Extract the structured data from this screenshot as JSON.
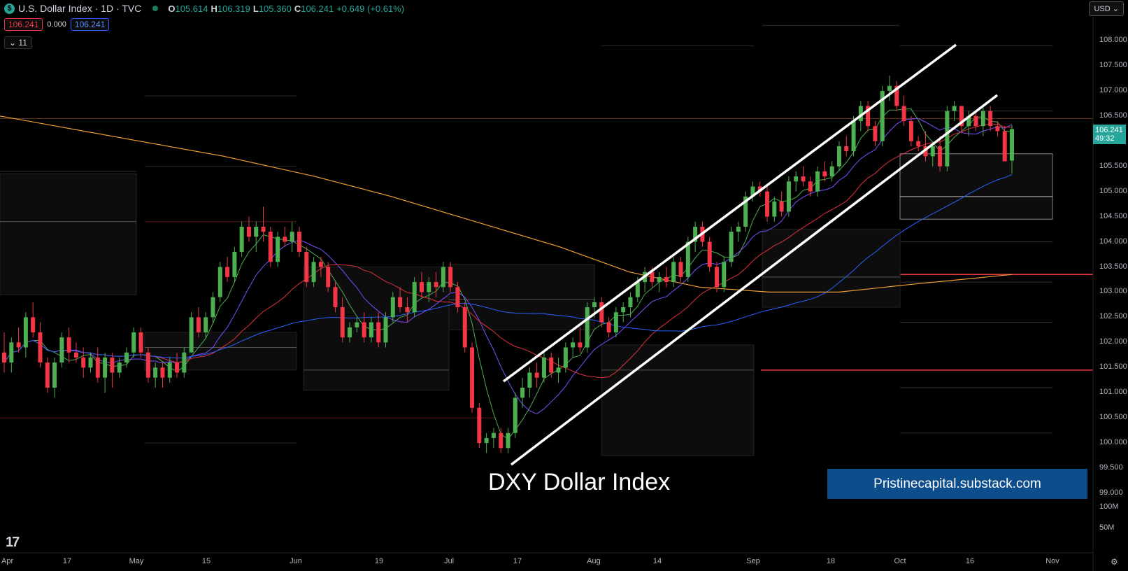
{
  "header": {
    "logo_glyph": "$",
    "symbol": "U.S. Dollar Index · 1D · TVC",
    "ohlc": [
      {
        "k": "O",
        "v": "105.614"
      },
      {
        "k": "H",
        "v": "106.319"
      },
      {
        "k": "L",
        "v": "105.360"
      },
      {
        "k": "C",
        "v": "106.241"
      }
    ],
    "change": "+0.649 (+0.61%)",
    "bid": "106.241",
    "spread": "0.000",
    "ask": "106.241",
    "indicator_toggle": "11",
    "currency": "USD"
  },
  "price_tag": {
    "price": "106.241",
    "countdown": "49:32"
  },
  "title_text": "DXY Dollar Index",
  "banner_text": "Pristinecapital.substack.com",
  "colors": {
    "up": "#4caf50",
    "down": "#f23645",
    "ma200": "#f0a030",
    "ma50": "#2962ff",
    "ma20": "#e0303a",
    "ma10": "#7c4dff",
    "ma5": "#4caf50",
    "channel": "#ffffff",
    "banner": "#0d4d8c",
    "tag": "#26a69a"
  },
  "chart_data": {
    "type": "candlestick",
    "x_labels": [
      "Apr",
      "17",
      "May",
      "15",
      "Jun",
      "19",
      "Jul",
      "17",
      "Aug",
      "14",
      "Sep",
      "18",
      "Oct",
      "16",
      "Nov"
    ],
    "y_ticks": [
      "108.000",
      "107.500",
      "107.000",
      "106.500",
      "105.500",
      "105.000",
      "104.500",
      "104.000",
      "103.500",
      "103.000",
      "102.500",
      "102.000",
      "101.500",
      "101.000",
      "100.500",
      "100.000",
      "99.500",
      "99.000"
    ],
    "y_range": [
      98.5,
      108.5
    ],
    "volume_ticks": [
      "100M",
      "50M"
    ],
    "candles": [
      [
        101.8,
        102.2,
        101.4,
        101.6
      ],
      [
        101.6,
        102.1,
        101.4,
        102.0
      ],
      [
        102.0,
        102.3,
        101.8,
        101.9
      ],
      [
        101.9,
        102.6,
        101.7,
        102.5
      ],
      [
        102.5,
        102.8,
        102.1,
        102.2
      ],
      [
        102.2,
        102.4,
        101.5,
        101.6
      ],
      [
        101.6,
        101.7,
        101.0,
        101.1
      ],
      [
        101.1,
        101.7,
        100.9,
        101.6
      ],
      [
        101.6,
        102.2,
        101.5,
        102.1
      ],
      [
        102.1,
        102.3,
        101.6,
        101.8
      ],
      [
        101.8,
        102.0,
        101.6,
        101.7
      ],
      [
        101.7,
        101.9,
        101.3,
        101.5
      ],
      [
        101.5,
        101.8,
        101.4,
        101.7
      ],
      [
        101.7,
        101.9,
        101.2,
        101.3
      ],
      [
        101.3,
        101.8,
        101.0,
        101.7
      ],
      [
        101.7,
        101.8,
        101.1,
        101.4
      ],
      [
        101.4,
        101.7,
        101.3,
        101.6
      ],
      [
        101.6,
        101.9,
        101.5,
        101.8
      ],
      [
        101.8,
        102.3,
        101.7,
        102.2
      ],
      [
        102.2,
        102.3,
        101.7,
        101.8
      ],
      [
        101.8,
        101.9,
        101.2,
        101.3
      ],
      [
        101.3,
        101.6,
        101.1,
        101.5
      ],
      [
        101.5,
        101.6,
        101.1,
        101.3
      ],
      [
        101.3,
        101.7,
        101.2,
        101.6
      ],
      [
        101.6,
        101.8,
        101.3,
        101.4
      ],
      [
        101.4,
        101.9,
        101.3,
        101.8
      ],
      [
        101.8,
        102.6,
        101.8,
        102.5
      ],
      [
        102.5,
        102.7,
        102.1,
        102.2
      ],
      [
        102.2,
        102.6,
        102.1,
        102.5
      ],
      [
        102.5,
        103.0,
        102.4,
        102.9
      ],
      [
        102.9,
        103.6,
        102.8,
        103.5
      ],
      [
        103.5,
        103.7,
        103.2,
        103.3
      ],
      [
        103.3,
        103.9,
        103.2,
        103.8
      ],
      [
        103.8,
        104.4,
        103.7,
        104.3
      ],
      [
        104.3,
        104.5,
        104.0,
        104.1
      ],
      [
        104.1,
        104.4,
        103.8,
        104.3
      ],
      [
        104.3,
        104.7,
        104.0,
        104.2
      ],
      [
        104.2,
        104.3,
        103.5,
        103.6
      ],
      [
        103.6,
        104.2,
        103.5,
        104.1
      ],
      [
        104.1,
        104.3,
        103.9,
        104.0
      ],
      [
        104.0,
        104.4,
        103.8,
        104.2
      ],
      [
        104.2,
        104.3,
        103.7,
        103.8
      ],
      [
        103.8,
        103.9,
        103.1,
        103.2
      ],
      [
        103.2,
        103.7,
        103.1,
        103.6
      ],
      [
        103.6,
        103.7,
        103.3,
        103.5
      ],
      [
        103.5,
        103.6,
        103.0,
        103.1
      ],
      [
        103.1,
        103.2,
        102.6,
        102.7
      ],
      [
        102.7,
        102.9,
        102.0,
        102.1
      ],
      [
        102.1,
        102.4,
        102.0,
        102.3
      ],
      [
        102.3,
        102.5,
        102.2,
        102.4
      ],
      [
        102.4,
        102.6,
        102.0,
        102.1
      ],
      [
        102.1,
        102.5,
        102.0,
        102.4
      ],
      [
        102.4,
        102.6,
        101.9,
        102.0
      ],
      [
        102.0,
        102.6,
        101.9,
        102.5
      ],
      [
        102.5,
        103.0,
        102.4,
        102.9
      ],
      [
        102.9,
        103.1,
        102.6,
        102.7
      ],
      [
        102.7,
        102.9,
        102.4,
        102.6
      ],
      [
        102.6,
        103.3,
        102.5,
        103.2
      ],
      [
        103.2,
        103.4,
        102.9,
        103.0
      ],
      [
        103.0,
        103.3,
        102.8,
        103.2
      ],
      [
        103.2,
        103.4,
        102.9,
        103.1
      ],
      [
        103.1,
        103.6,
        103.0,
        103.5
      ],
      [
        103.5,
        103.6,
        103.0,
        103.1
      ],
      [
        103.1,
        103.2,
        102.6,
        102.7
      ],
      [
        102.7,
        102.8,
        101.8,
        101.9
      ],
      [
        101.9,
        102.0,
        100.6,
        100.7
      ],
      [
        100.7,
        100.8,
        99.9,
        100.0
      ],
      [
        100.0,
        100.2,
        99.8,
        100.1
      ],
      [
        100.1,
        100.3,
        99.9,
        100.2
      ],
      [
        100.2,
        100.3,
        99.8,
        99.9
      ],
      [
        99.9,
        100.3,
        99.8,
        100.2
      ],
      [
        100.2,
        101.0,
        100.1,
        100.9
      ],
      [
        100.9,
        101.3,
        100.7,
        101.1
      ],
      [
        101.1,
        101.5,
        100.9,
        101.4
      ],
      [
        101.4,
        101.6,
        101.1,
        101.3
      ],
      [
        101.3,
        101.8,
        101.2,
        101.7
      ],
      [
        101.7,
        101.8,
        101.3,
        101.4
      ],
      [
        101.4,
        101.7,
        101.2,
        101.5
      ],
      [
        101.5,
        102.0,
        101.4,
        101.9
      ],
      [
        101.9,
        102.1,
        101.7,
        102.0
      ],
      [
        102.0,
        102.3,
        101.8,
        101.9
      ],
      [
        101.9,
        102.8,
        101.8,
        102.7
      ],
      [
        102.7,
        102.9,
        102.5,
        102.8
      ],
      [
        102.8,
        102.9,
        102.3,
        102.4
      ],
      [
        102.4,
        102.5,
        102.1,
        102.2
      ],
      [
        102.2,
        102.7,
        102.1,
        102.6
      ],
      [
        102.6,
        102.8,
        102.4,
        102.7
      ],
      [
        102.7,
        103.0,
        102.5,
        102.9
      ],
      [
        102.9,
        103.3,
        102.8,
        103.2
      ],
      [
        103.2,
        103.5,
        103.0,
        103.4
      ],
      [
        103.4,
        103.5,
        103.1,
        103.2
      ],
      [
        103.2,
        103.4,
        103.0,
        103.3
      ],
      [
        103.3,
        103.5,
        103.1,
        103.2
      ],
      [
        103.2,
        103.7,
        103.1,
        103.6
      ],
      [
        103.6,
        103.7,
        103.2,
        103.3
      ],
      [
        103.3,
        104.1,
        103.2,
        104.0
      ],
      [
        104.0,
        104.4,
        103.8,
        104.3
      ],
      [
        104.3,
        104.4,
        103.9,
        104.0
      ],
      [
        104.0,
        104.1,
        103.4,
        103.5
      ],
      [
        103.5,
        103.6,
        103.0,
        103.1
      ],
      [
        103.1,
        103.7,
        103.0,
        103.6
      ],
      [
        103.6,
        104.3,
        103.5,
        104.2
      ],
      [
        104.2,
        104.4,
        104.0,
        104.3
      ],
      [
        104.3,
        105.0,
        104.2,
        104.9
      ],
      [
        104.9,
        105.2,
        104.8,
        105.1
      ],
      [
        105.1,
        105.2,
        104.9,
        105.0
      ],
      [
        105.0,
        105.1,
        104.4,
        104.5
      ],
      [
        104.5,
        104.9,
        104.4,
        104.8
      ],
      [
        104.8,
        105.0,
        104.5,
        104.6
      ],
      [
        104.6,
        105.3,
        104.5,
        105.2
      ],
      [
        105.2,
        105.4,
        105.0,
        105.3
      ],
      [
        105.3,
        105.5,
        105.1,
        105.2
      ],
      [
        105.2,
        105.3,
        104.9,
        105.0
      ],
      [
        105.0,
        105.5,
        104.9,
        105.4
      ],
      [
        105.4,
        105.6,
        105.2,
        105.3
      ],
      [
        105.3,
        105.6,
        105.2,
        105.5
      ],
      [
        105.5,
        106.0,
        105.4,
        105.9
      ],
      [
        105.9,
        106.1,
        105.7,
        105.8
      ],
      [
        105.8,
        106.5,
        105.7,
        106.4
      ],
      [
        106.4,
        106.8,
        106.2,
        106.7
      ],
      [
        106.7,
        106.8,
        106.2,
        106.3
      ],
      [
        106.3,
        106.4,
        105.9,
        106.0
      ],
      [
        106.0,
        107.1,
        105.9,
        107.0
      ],
      [
        107.0,
        107.3,
        106.8,
        107.1
      ],
      [
        107.1,
        107.2,
        106.6,
        106.7
      ],
      [
        106.7,
        106.9,
        106.3,
        106.4
      ],
      [
        106.4,
        106.5,
        105.9,
        106.0
      ],
      [
        106.0,
        106.1,
        105.8,
        105.9
      ],
      [
        105.9,
        106.2,
        105.6,
        105.7
      ],
      [
        105.7,
        106.0,
        105.5,
        105.9
      ],
      [
        105.9,
        106.1,
        105.4,
        105.5
      ],
      [
        105.5,
        106.7,
        105.4,
        106.6
      ],
      [
        106.6,
        106.8,
        106.4,
        106.7
      ],
      [
        106.7,
        106.7,
        106.2,
        106.3
      ],
      [
        106.3,
        106.6,
        106.1,
        106.5
      ],
      [
        106.5,
        106.6,
        106.2,
        106.3
      ],
      [
        106.3,
        106.7,
        106.1,
        106.6
      ],
      [
        106.6,
        106.7,
        106.2,
        106.3
      ],
      [
        106.3,
        106.4,
        106.1,
        106.2
      ],
      [
        106.2,
        106.3,
        105.6,
        105.6
      ],
      [
        105.614,
        106.319,
        105.36,
        106.241
      ]
    ]
  }
}
